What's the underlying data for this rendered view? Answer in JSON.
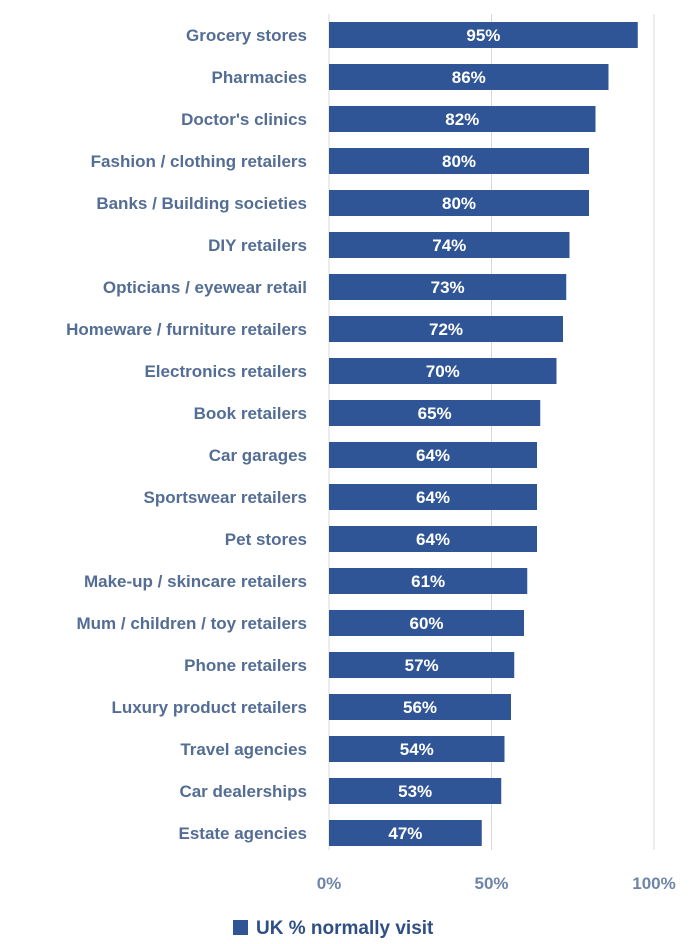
{
  "chart_data": {
    "type": "bar",
    "orientation": "horizontal",
    "categories": [
      "Grocery stores",
      "Pharmacies",
      "Doctor's clinics",
      "Fashion / clothing retailers",
      "Banks / Building societies",
      "DIY retailers",
      "Opticians / eyewear retail",
      "Homeware / furniture retailers",
      "Electronics retailers",
      "Book retailers",
      "Car garages",
      "Sportswear retailers",
      "Pet stores",
      "Make-up / skincare retailers",
      "Mum / children / toy retailers",
      "Phone retailers",
      "Luxury product retailers",
      "Travel agencies",
      "Car dealerships",
      "Estate agencies"
    ],
    "series": [
      {
        "name": "UK % normally visit",
        "values": [
          95,
          86,
          82,
          80,
          80,
          74,
          73,
          72,
          70,
          65,
          64,
          64,
          64,
          61,
          60,
          57,
          56,
          54,
          53,
          47
        ],
        "labels": [
          "95%",
          "86%",
          "82%",
          "80%",
          "80%",
          "74%",
          "73%",
          "72%",
          "70%",
          "65%",
          "64%",
          "64%",
          "64%",
          "61%",
          "60%",
          "57%",
          "56%",
          "54%",
          "53%",
          "47%"
        ],
        "color": "#2f5597"
      }
    ],
    "xlim": [
      0,
      100
    ],
    "xticks": [
      "0%",
      "50%",
      "100%"
    ],
    "grid": true,
    "legend_position": "bottom",
    "title": "",
    "xlabel": "",
    "ylabel": ""
  },
  "colors": {
    "bar": "#2f5597",
    "category_text": "#536d95",
    "tick_text": "#6f85a8",
    "legend_text": "#2f4f84",
    "grid": "#d9d9d9",
    "background": "#ffffff"
  }
}
